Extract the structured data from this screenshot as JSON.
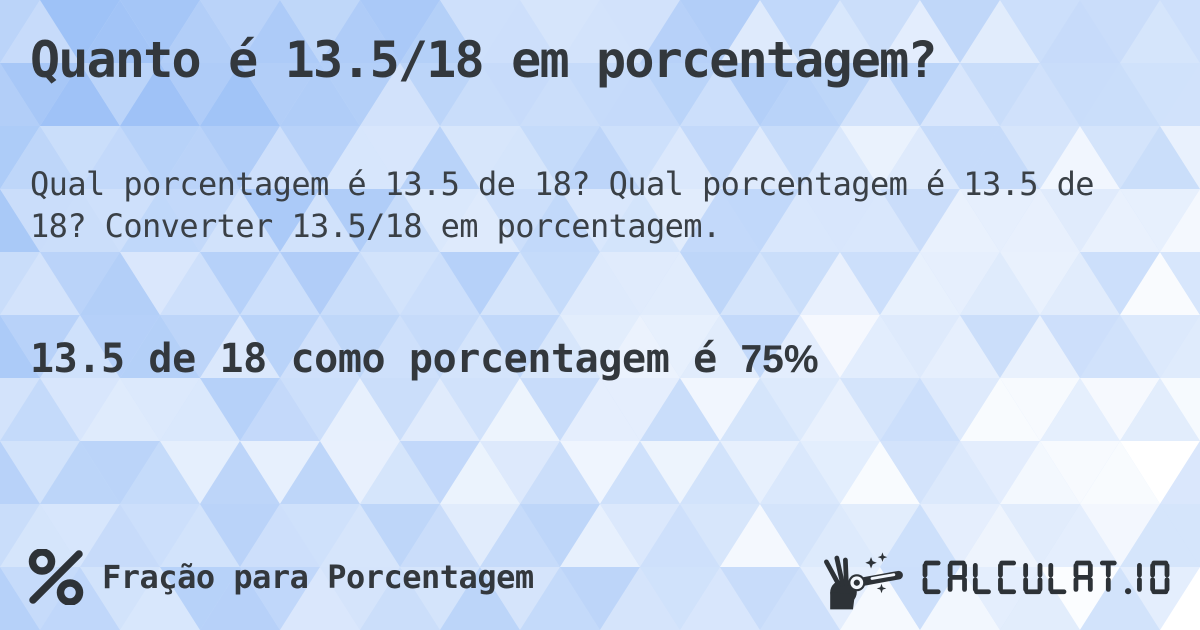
{
  "card": {
    "title": "Quanto é 13.5/18 em porcentagem?",
    "description": "Qual porcentagem é 13.5 de 18? Qual porcentagem é 13.5 de 18? Converter 13.5/18 em porcentagem.",
    "answer": {
      "prefix": "13.5 de 18 como porcentagem é ",
      "value": "75%"
    }
  },
  "footer": {
    "category": {
      "icon": "percent-icon",
      "label": "Fração para Porcentagem"
    },
    "brand": {
      "icon": "magic-wand-hand-icon",
      "name": "CALCULAT.IO"
    }
  },
  "colors": {
    "text-primary": "#33383d",
    "text-secondary": "#3a4046",
    "icon-dark": "#2d3237",
    "bg-blue": "#98bef6",
    "bg-white": "#ffffff"
  }
}
